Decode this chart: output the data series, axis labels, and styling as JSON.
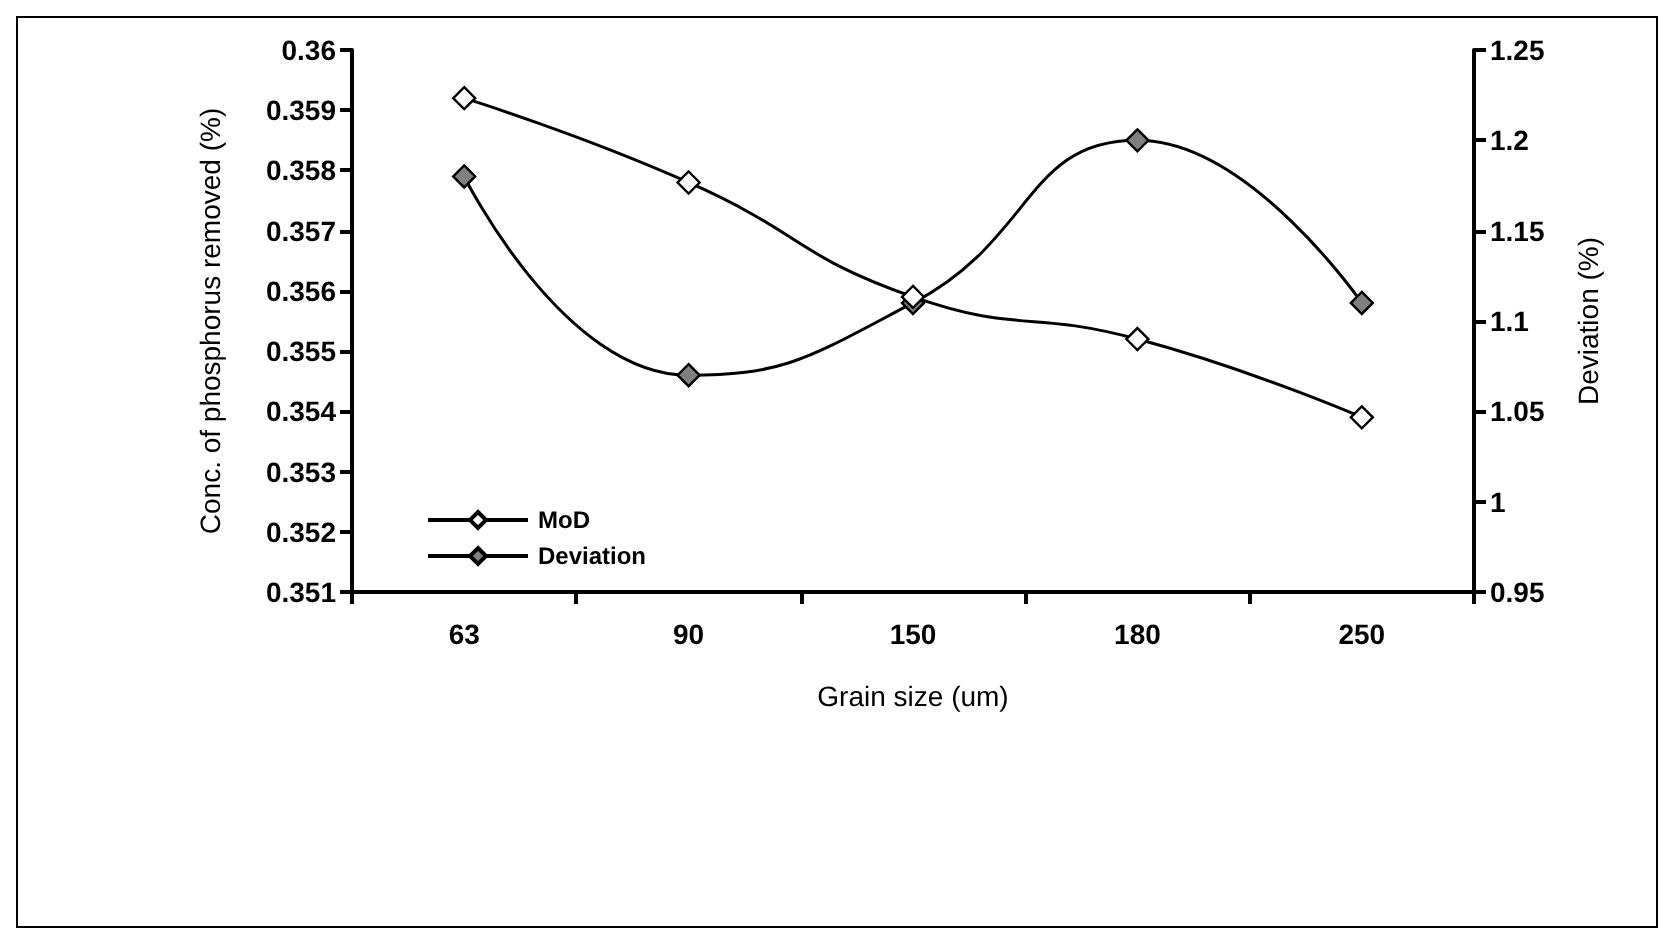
{
  "chart_data": {
    "type": "line",
    "xlabel": "Grain size (um)",
    "ylabel": "Conc. of phosphorus removed (%)",
    "y2label": "Deviation (%)",
    "categories": [
      "63",
      "90",
      "150",
      "180",
      "250"
    ],
    "series": [
      {
        "name": "MoD",
        "color": "#ffffff",
        "values": [
          0.3592,
          0.3578,
          0.3559,
          0.3552,
          0.3539
        ]
      },
      {
        "name": "Deviation",
        "color": "#808080",
        "axis": "y2",
        "values": [
          1.18,
          1.07,
          1.11,
          1.2,
          1.11
        ]
      }
    ],
    "ylim": [
      0.351,
      0.36
    ],
    "yticks": [
      0.351,
      0.352,
      0.353,
      0.354,
      0.355,
      0.356,
      0.357,
      0.358,
      0.359,
      0.36
    ],
    "y2lim": [
      0.95,
      1.25
    ],
    "y2ticks": [
      0.95,
      1,
      1.05,
      1.1,
      1.15,
      1.2,
      1.25
    ],
    "grid": false,
    "legend": "bottom left",
    "marker": "diamond",
    "line_style": "solid"
  }
}
